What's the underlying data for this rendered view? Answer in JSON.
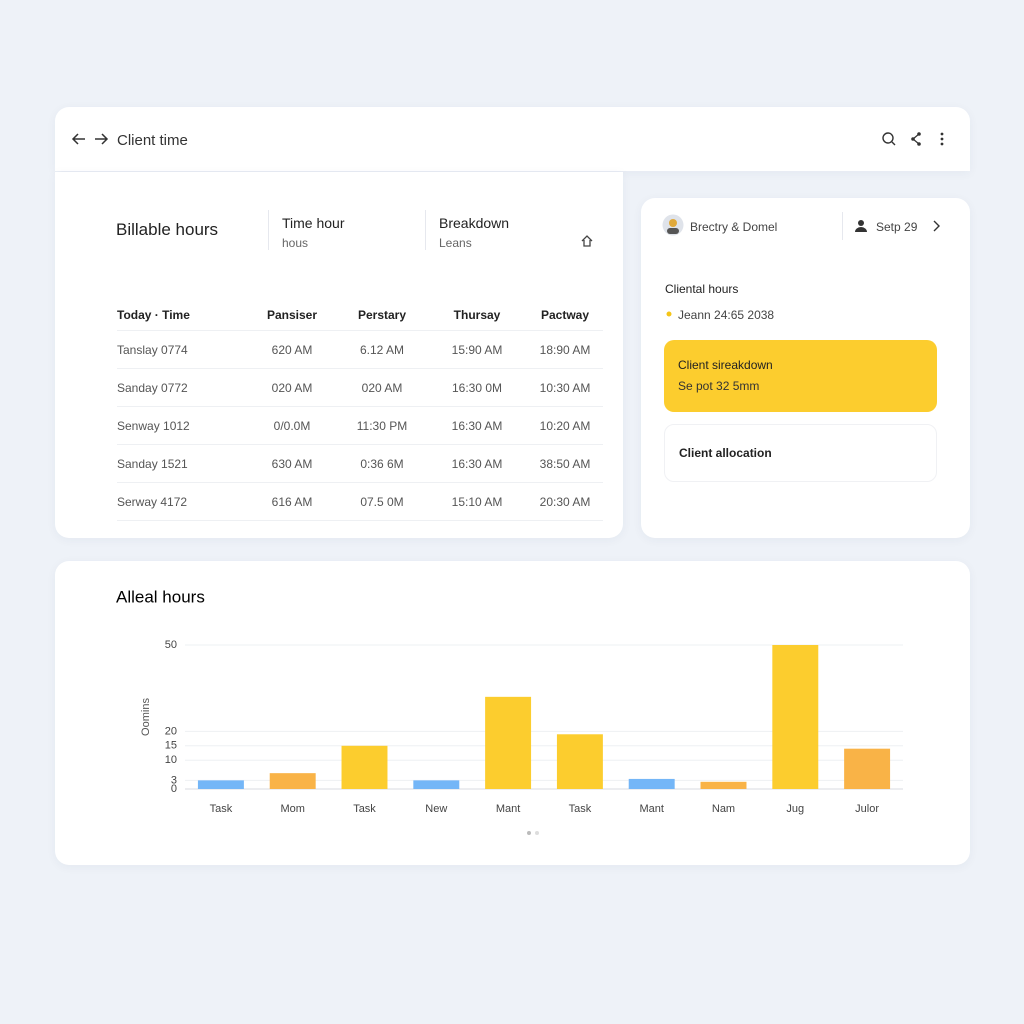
{
  "header": {
    "title": "Client time"
  },
  "summary": {
    "title": "Billable hours",
    "items": [
      {
        "label": "Time hour",
        "sub": "hous"
      },
      {
        "label": "Breakdown",
        "sub": "Leans"
      }
    ]
  },
  "table": {
    "columns": [
      "Today · Time",
      "Pansiser",
      "Perstary",
      "Thursay",
      "Pactway"
    ],
    "rows": [
      [
        "Tanslay 0774",
        "620 AM",
        "6.12 AM",
        "15:90 AM",
        "18:90 AM"
      ],
      [
        "Sanday 0772",
        "020 AM",
        "020 AM",
        "16:30 0M",
        "10:30 AM"
      ],
      [
        "Senway 1012",
        "0/0.0M",
        "11:30 PM",
        "16:30 AM",
        "10:20 AM"
      ],
      [
        "Sanday 1521",
        "630 AM",
        "0:36 6M",
        "16:30 AM",
        "38:50 AM"
      ],
      [
        "Serway 4172",
        "616 AM",
        "07.5 0M",
        "15:10 AM",
        "20:30 AM"
      ]
    ]
  },
  "sidebar": {
    "user": "Brectry & Domel",
    "date": "Setp 29",
    "section": "Cliental hours",
    "entry": "Jeann 24:65 2038",
    "highlight": {
      "title": "Client sireakdown",
      "sub": "Se pot 32 5mm"
    },
    "allocation": "Client allocation"
  },
  "chart_data": {
    "type": "bar",
    "title": "Alleal hours",
    "y_label": "Oomins",
    "categories": [
      "Task",
      "Mom",
      "Task",
      "New",
      "Mant",
      "Task",
      "Mant",
      "Nam",
      "Jug",
      "Julor"
    ],
    "values": [
      3,
      5.5,
      15,
      3,
      32,
      19,
      3.5,
      2.5,
      50,
      14
    ],
    "colors": [
      "#74b6f7",
      "#f9b347",
      "#fccd2e",
      "#74b6f7",
      "#fccd2e",
      "#fccd2e",
      "#74b6f7",
      "#f9b347",
      "#fccd2e",
      "#f9b347"
    ],
    "ylim": [
      0,
      50
    ],
    "yticks": [
      0,
      3,
      10,
      15,
      20,
      50
    ],
    "grid": true
  }
}
